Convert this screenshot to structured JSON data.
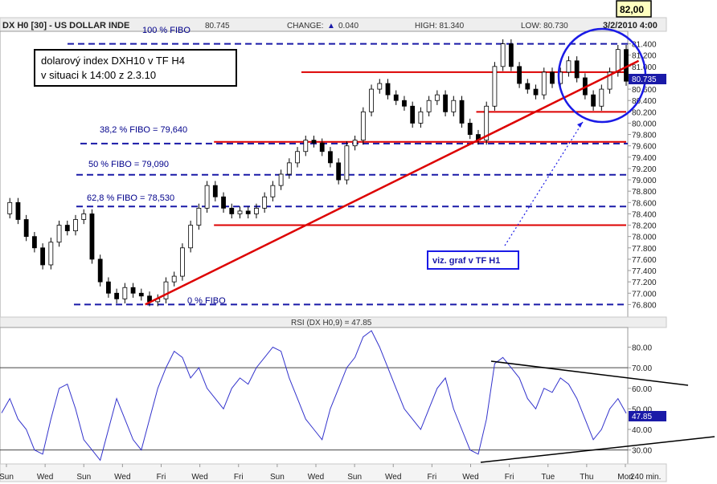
{
  "header": {
    "symbol": "DX H0 [30] - US DOLLAR INDE",
    "last": "80.745",
    "change_label": "CHANGE:",
    "change_value": "0.040",
    "high": "HIGH: 81.340",
    "low": "LOW: 80.730",
    "datetime": "3/2/2010 4:00"
  },
  "callouts": {
    "top_value": "82,00",
    "title_line1": "dolarový index DXH10 v TF H4",
    "title_line2": "v situaci k 14:00 z 2.3.10",
    "link_box": "viz. graf v TF H1"
  },
  "fib_labels": {
    "f100": "100 % FIBO",
    "f382": "38,2 % FIBO  = 79,640",
    "f50": "50 % FIBO  = 79,090",
    "f618": "62,8 % FIBO  = 78,530",
    "f0": "0 % FIBO"
  },
  "price_badge": "80.735",
  "rsi_title": "RSI (DX H0,9) = 47.85",
  "rsi_badge": "47.85",
  "bottom_unit": "240 min.",
  "colors": {
    "price": "#000000",
    "rsi": "#3333cc",
    "fib": "#1a1aa8",
    "resistance": "#dd0000",
    "ellipse": "#1a1ae6"
  },
  "chart_data": [
    {
      "type": "line",
      "panel": "price",
      "series": [
        {
          "values": [
            78.4,
            78.6,
            78.3,
            78.0,
            77.8,
            77.5,
            77.9,
            78.2,
            78.1,
            78.3,
            78.4,
            77.6,
            77.2,
            77.0,
            76.9,
            77.1,
            77.0,
            76.95,
            76.85,
            76.9,
            77.2,
            77.3,
            77.8,
            78.2,
            78.5,
            78.9,
            78.7,
            78.5,
            78.4,
            78.45,
            78.4,
            78.5,
            78.7,
            78.9,
            79.1,
            79.3,
            79.5,
            79.7,
            79.65,
            79.5,
            79.3,
            79.0,
            79.6,
            79.7,
            80.2,
            80.6,
            80.7,
            80.5,
            80.4,
            80.3,
            80.0,
            80.2,
            80.4,
            80.5,
            80.2,
            80.4,
            80.0,
            79.8,
            79.7,
            80.3,
            81.0,
            81.4,
            81.0,
            80.7,
            80.6,
            80.5,
            80.9,
            80.7,
            80.9,
            81.1,
            80.8,
            80.5,
            80.3,
            80.6,
            80.9,
            81.3,
            80.74
          ]
        }
      ],
      "ylim": [
        76.65,
        81.55
      ],
      "yticks": [
        "81.400",
        "81.200",
        "81.000",
        "80.800",
        "80.600",
        "80.400",
        "80.200",
        "80.000",
        "79.800",
        "79.600",
        "79.400",
        "79.200",
        "79.000",
        "78.800",
        "78.600",
        "78.400",
        "78.200",
        "78.000",
        "77.800",
        "77.600",
        "77.400",
        "77.200",
        "77.000",
        "76.800"
      ],
      "fib_levels": [
        81.4,
        79.64,
        79.09,
        78.53,
        76.8
      ],
      "resistance_levels": [
        {
          "y": 80.9,
          "from": 0.48,
          "to": 1.0
        },
        {
          "y": 79.67,
          "from": 0.34,
          "to": 1.0
        },
        {
          "y": 80.2,
          "from": 0.76,
          "to": 1.0
        },
        {
          "y": 78.2,
          "from": 0.34,
          "to": 1.0
        }
      ],
      "trendline": {
        "from": [
          0.23,
          76.8
        ],
        "to": [
          1.02,
          81.1
        ]
      }
    },
    {
      "type": "line",
      "panel": "rsi",
      "series": [
        {
          "values": [
            48,
            55,
            45,
            40,
            30,
            28,
            45,
            60,
            62,
            50,
            35,
            30,
            25,
            40,
            55,
            45,
            35,
            30,
            45,
            60,
            70,
            78,
            75,
            65,
            70,
            60,
            55,
            50,
            60,
            65,
            62,
            70,
            75,
            80,
            78,
            65,
            55,
            45,
            40,
            35,
            50,
            60,
            70,
            75,
            85,
            88,
            80,
            70,
            60,
            50,
            45,
            40,
            50,
            60,
            65,
            50,
            40,
            30,
            28,
            45,
            72,
            75,
            70,
            65,
            55,
            50,
            60,
            58,
            65,
            62,
            55,
            45,
            35,
            40,
            50,
            55,
            47.85
          ]
        }
      ],
      "ylim": [
        24,
        88
      ],
      "yticks": [
        "80.00",
        "70.00",
        "60.00",
        "50.00",
        "40.00",
        "30.00"
      ],
      "reference_lines": [
        70,
        30
      ]
    }
  ],
  "xticks": [
    "Sun",
    "Wed",
    "Sun",
    "Wed",
    "Fri",
    "Wed",
    "Fri",
    "Sun",
    "Wed",
    "Sun",
    "Wed",
    "Fri",
    "Wed",
    "Fri",
    "Tue",
    "Thu",
    "Mon"
  ]
}
